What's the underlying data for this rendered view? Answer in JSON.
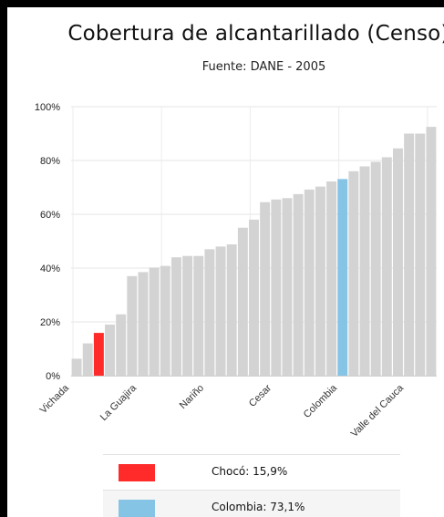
{
  "chart_data": {
    "type": "bar",
    "title": "Cobertura de alcantarillado (Censo)",
    "subtitle": "Fuente: DANE - 2005",
    "ylim": [
      0,
      100
    ],
    "yticks": [
      "0%",
      "20%",
      "40%",
      "60%",
      "80%",
      "100%"
    ],
    "grid": true,
    "x_tick_labels": [
      "Vichada",
      "La Guajira",
      "Nariño",
      "Cesar",
      "Colombia",
      "Valle del Cauca"
    ],
    "values": [
      6.3,
      12,
      15.9,
      19,
      22.8,
      37,
      38.5,
      40.2,
      40.8,
      44,
      44.5,
      44.5,
      47,
      48,
      48.8,
      55,
      58,
      64.5,
      65.5,
      66,
      67.5,
      69.2,
      70.3,
      72.2,
      73.1,
      76,
      77.8,
      79.5,
      81.2,
      84.5,
      90,
      90,
      92.5
    ],
    "highlight": [
      {
        "name": "Chocó",
        "index": 2,
        "value": 15.9,
        "color": "#ff2a2a"
      },
      {
        "name": "Colombia",
        "index": 24,
        "value": 73.1,
        "color": "#86c4e6"
      }
    ],
    "default_color": "#d3d3d3"
  },
  "legend": [
    {
      "label": "Chocó:  15,9%",
      "color": "#ff2a2a"
    },
    {
      "label": "Colombia:  73,1%",
      "color": "#86c4e6"
    }
  ]
}
